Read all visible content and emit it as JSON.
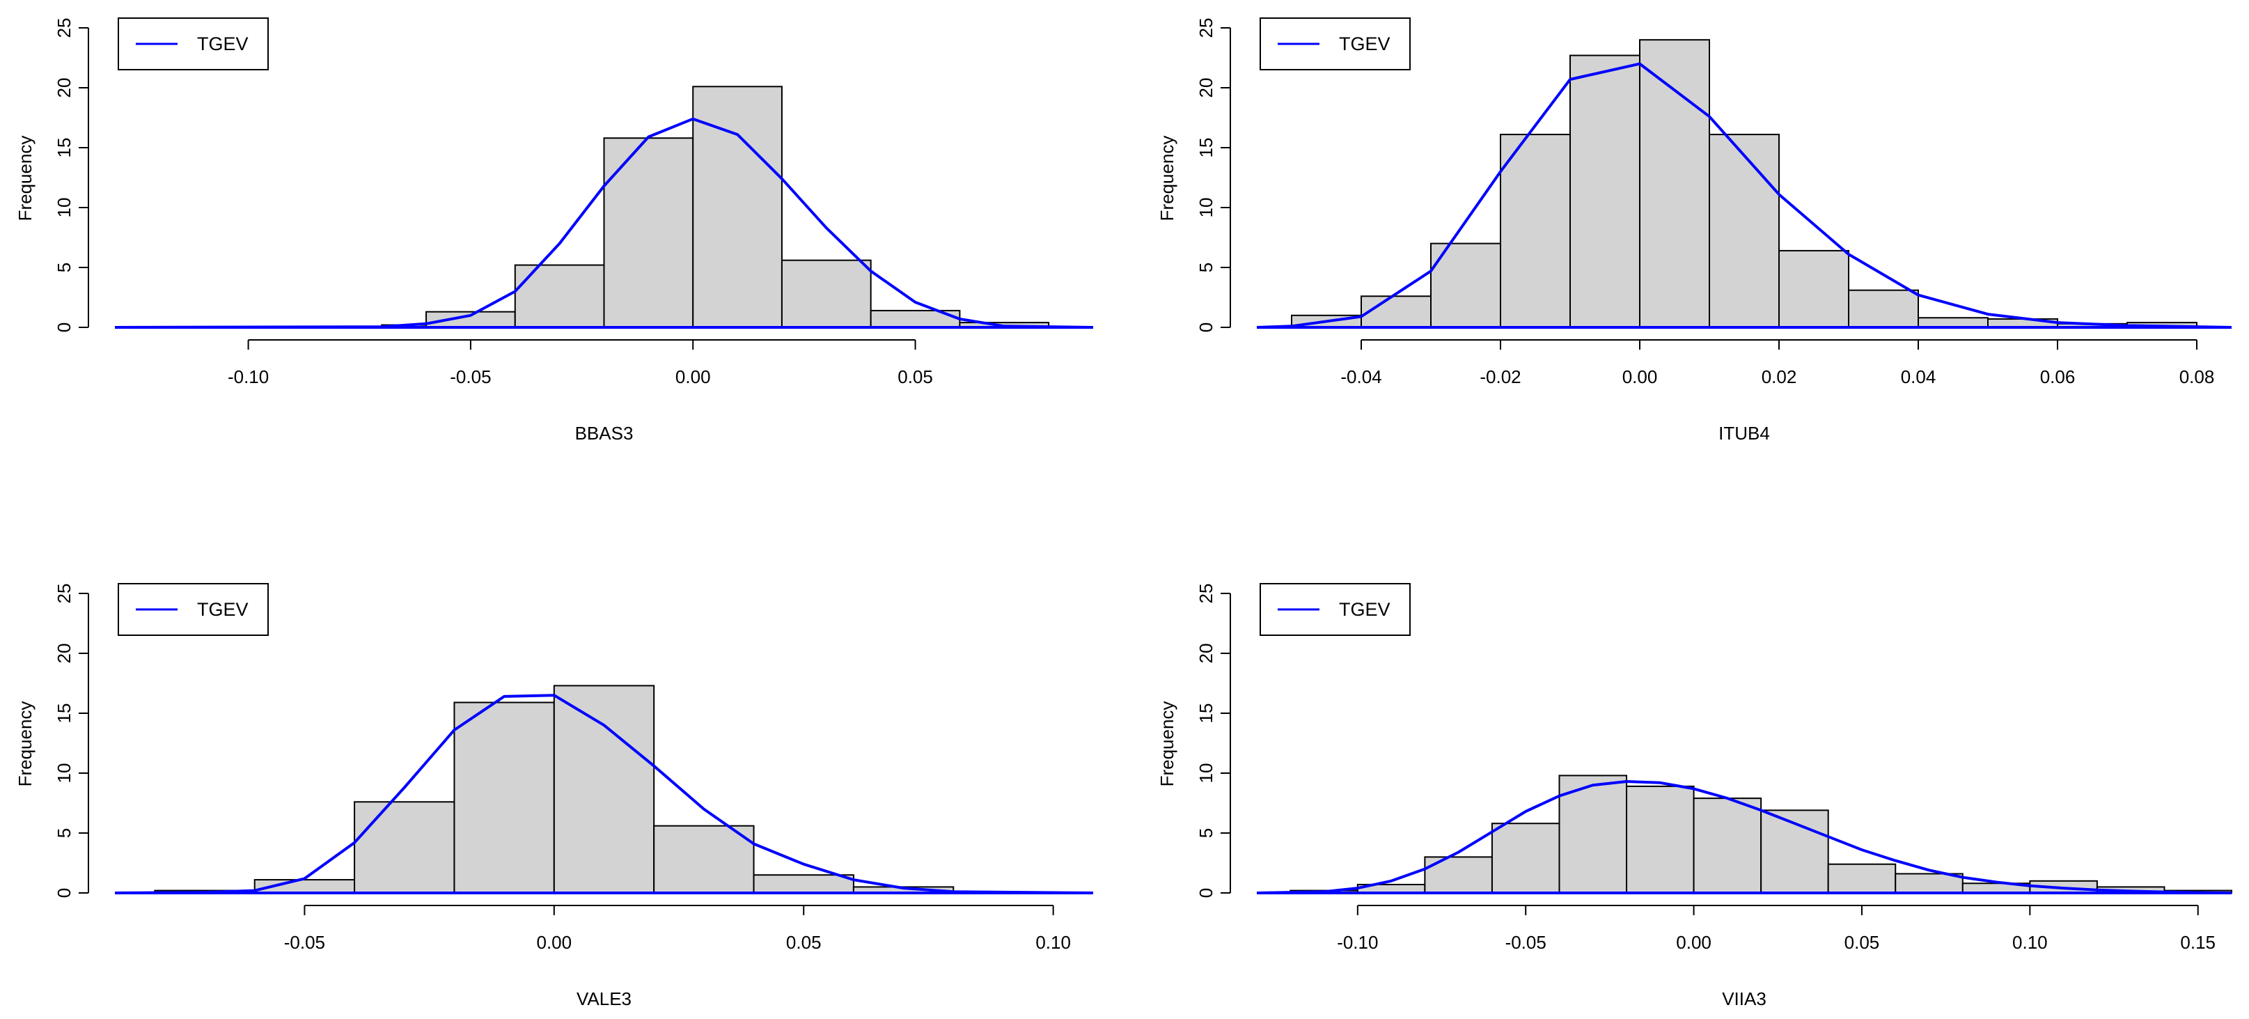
{
  "colors": {
    "bar_fill": "#d3d3d3",
    "bar_stroke": "#000000",
    "line": "#0000ff",
    "axis": "#000000"
  },
  "chart_data": [
    {
      "type": "bar",
      "title": "",
      "xlabel": "BBAS3",
      "ylabel": "Frequency",
      "xlim": [
        -0.13,
        0.09
      ],
      "ylim": [
        0,
        25
      ],
      "xticks": [
        -0.1,
        -0.05,
        0.0,
        0.05
      ],
      "xtick_labels": [
        "-0.10",
        "-0.05",
        "0.00",
        "0.05"
      ],
      "yticks": [
        0,
        5,
        10,
        15,
        20,
        25
      ],
      "ytick_labels": [
        "0",
        "5",
        "10",
        "15",
        "20",
        "25"
      ],
      "legend": {
        "label": "TGEV",
        "position": "top-left"
      },
      "bins": [
        {
          "x0": -0.07,
          "x1": -0.06,
          "count": 0.2
        },
        {
          "x0": -0.06,
          "x1": -0.04,
          "count": 1.3
        },
        {
          "x0": -0.04,
          "x1": -0.02,
          "count": 5.2
        },
        {
          "x0": -0.02,
          "x1": 0.0,
          "count": 15.8
        },
        {
          "x0": 0.0,
          "x1": 0.02,
          "count": 20.1
        },
        {
          "x0": 0.02,
          "x1": 0.04,
          "count": 5.6
        },
        {
          "x0": 0.04,
          "x1": 0.06,
          "count": 1.4
        },
        {
          "x0": 0.06,
          "x1": 0.08,
          "count": 0.4
        }
      ],
      "series": [
        {
          "name": "TGEV",
          "x": [
            -0.13,
            -0.07,
            -0.06,
            -0.05,
            -0.04,
            -0.03,
            -0.02,
            -0.01,
            0.0,
            0.01,
            0.02,
            0.03,
            0.04,
            0.05,
            0.06,
            0.07,
            0.09
          ],
          "y": [
            0,
            0.05,
            0.3,
            1.0,
            3.0,
            7.0,
            11.8,
            15.9,
            17.4,
            16.1,
            12.4,
            8.3,
            4.7,
            2.1,
            0.7,
            0.1,
            0
          ]
        }
      ]
    },
    {
      "type": "bar",
      "title": "",
      "xlabel": "ITUB4",
      "ylabel": "Frequency",
      "xlim": [
        -0.055,
        0.085
      ],
      "ylim": [
        0,
        25
      ],
      "xticks": [
        -0.04,
        -0.02,
        0.0,
        0.02,
        0.04,
        0.06,
        0.08
      ],
      "xtick_labels": [
        "-0.04",
        "-0.02",
        "0.00",
        "0.02",
        "0.04",
        "0.06",
        "0.08"
      ],
      "yticks": [
        0,
        5,
        10,
        15,
        20,
        25
      ],
      "ytick_labels": [
        "0",
        "5",
        "10",
        "15",
        "20",
        "25"
      ],
      "legend": {
        "label": "TGEV",
        "position": "top-left"
      },
      "bins": [
        {
          "x0": -0.05,
          "x1": -0.04,
          "count": 1.0
        },
        {
          "x0": -0.04,
          "x1": -0.03,
          "count": 2.6
        },
        {
          "x0": -0.03,
          "x1": -0.02,
          "count": 7.0
        },
        {
          "x0": -0.02,
          "x1": -0.01,
          "count": 16.1
        },
        {
          "x0": -0.01,
          "x1": 0.0,
          "count": 22.7
        },
        {
          "x0": 0.0,
          "x1": 0.01,
          "count": 24.0
        },
        {
          "x0": 0.01,
          "x1": 0.02,
          "count": 16.1
        },
        {
          "x0": 0.02,
          "x1": 0.03,
          "count": 6.4
        },
        {
          "x0": 0.03,
          "x1": 0.04,
          "count": 3.1
        },
        {
          "x0": 0.04,
          "x1": 0.05,
          "count": 0.8
        },
        {
          "x0": 0.05,
          "x1": 0.06,
          "count": 0.7
        },
        {
          "x0": 0.06,
          "x1": 0.07,
          "count": 0.3
        },
        {
          "x0": 0.07,
          "x1": 0.08,
          "count": 0.4
        }
      ],
      "series": [
        {
          "name": "TGEV",
          "x": [
            -0.055,
            -0.05,
            -0.04,
            -0.03,
            -0.02,
            -0.01,
            0.0,
            0.01,
            0.02,
            0.03,
            0.04,
            0.05,
            0.06,
            0.07,
            0.08,
            0.085
          ],
          "y": [
            0,
            0.1,
            0.9,
            4.7,
            13.0,
            20.7,
            22.0,
            17.6,
            11.1,
            6.1,
            2.7,
            1.1,
            0.4,
            0.15,
            0.05,
            0
          ]
        }
      ]
    },
    {
      "type": "bar",
      "title": "",
      "xlabel": "VALE3",
      "ylabel": "Frequency",
      "xlim": [
        -0.088,
        0.108
      ],
      "ylim": [
        0,
        25
      ],
      "xticks": [
        -0.05,
        0.0,
        0.05,
        0.1
      ],
      "xtick_labels": [
        "-0.05",
        "0.00",
        "0.05",
        "0.10"
      ],
      "yticks": [
        0,
        5,
        10,
        15,
        20,
        25
      ],
      "ytick_labels": [
        "0",
        "5",
        "10",
        "15",
        "20",
        "25"
      ],
      "legend": {
        "label": "TGEV",
        "position": "top-left"
      },
      "bins": [
        {
          "x0": -0.08,
          "x1": -0.06,
          "count": 0.2
        },
        {
          "x0": -0.06,
          "x1": -0.04,
          "count": 1.1
        },
        {
          "x0": -0.04,
          "x1": -0.02,
          "count": 7.6
        },
        {
          "x0": -0.02,
          "x1": 0.0,
          "count": 15.9
        },
        {
          "x0": 0.0,
          "x1": 0.02,
          "count": 17.3
        },
        {
          "x0": 0.02,
          "x1": 0.04,
          "count": 5.6
        },
        {
          "x0": 0.04,
          "x1": 0.06,
          "count": 1.5
        },
        {
          "x0": 0.06,
          "x1": 0.08,
          "count": 0.5
        }
      ],
      "series": [
        {
          "name": "TGEV",
          "x": [
            -0.088,
            -0.07,
            -0.06,
            -0.05,
            -0.04,
            -0.03,
            -0.02,
            -0.01,
            0.0,
            0.01,
            0.02,
            0.03,
            0.04,
            0.05,
            0.06,
            0.07,
            0.08,
            0.108
          ],
          "y": [
            0,
            0.05,
            0.2,
            1.2,
            4.2,
            8.8,
            13.6,
            16.4,
            16.5,
            14.0,
            10.6,
            7.0,
            4.1,
            2.4,
            1.1,
            0.4,
            0.1,
            0
          ]
        }
      ]
    },
    {
      "type": "bar",
      "title": "",
      "xlabel": "VIIA3",
      "ylabel": "Frequency",
      "xlim": [
        -0.13,
        0.16
      ],
      "ylim": [
        0,
        25
      ],
      "xticks": [
        -0.1,
        -0.05,
        0.0,
        0.05,
        0.1,
        0.15
      ],
      "xtick_labels": [
        "-0.10",
        "-0.05",
        "0.00",
        "0.05",
        "0.10",
        "0.15"
      ],
      "yticks": [
        0,
        5,
        10,
        15,
        20,
        25
      ],
      "ytick_labels": [
        "0",
        "5",
        "10",
        "15",
        "20",
        "25"
      ],
      "legend": {
        "label": "TGEV",
        "position": "top-left"
      },
      "bins": [
        {
          "x0": -0.12,
          "x1": -0.1,
          "count": 0.2
        },
        {
          "x0": -0.1,
          "x1": -0.08,
          "count": 0.7
        },
        {
          "x0": -0.08,
          "x1": -0.06,
          "count": 3.0
        },
        {
          "x0": -0.06,
          "x1": -0.04,
          "count": 5.8
        },
        {
          "x0": -0.04,
          "x1": -0.02,
          "count": 9.8
        },
        {
          "x0": -0.02,
          "x1": 0.0,
          "count": 8.9
        },
        {
          "x0": 0.0,
          "x1": 0.02,
          "count": 7.9
        },
        {
          "x0": 0.02,
          "x1": 0.04,
          "count": 6.9
        },
        {
          "x0": 0.04,
          "x1": 0.06,
          "count": 2.4
        },
        {
          "x0": 0.06,
          "x1": 0.08,
          "count": 1.6
        },
        {
          "x0": 0.08,
          "x1": 0.1,
          "count": 0.8
        },
        {
          "x0": 0.1,
          "x1": 0.12,
          "count": 1.0
        },
        {
          "x0": 0.12,
          "x1": 0.14,
          "count": 0.5
        },
        {
          "x0": 0.14,
          "x1": 0.16,
          "count": 0.2
        }
      ],
      "series": [
        {
          "name": "TGEV",
          "x": [
            -0.13,
            -0.11,
            -0.1,
            -0.09,
            -0.08,
            -0.07,
            -0.06,
            -0.05,
            -0.04,
            -0.03,
            -0.02,
            -0.01,
            0.0,
            0.01,
            0.02,
            0.03,
            0.04,
            0.05,
            0.06,
            0.07,
            0.08,
            0.09,
            0.1,
            0.11,
            0.12,
            0.13,
            0.14,
            0.15,
            0.16
          ],
          "y": [
            0,
            0.1,
            0.4,
            1.0,
            2.0,
            3.4,
            5.1,
            6.8,
            8.1,
            9.0,
            9.3,
            9.2,
            8.7,
            7.9,
            6.9,
            5.8,
            4.7,
            3.6,
            2.7,
            1.9,
            1.3,
            0.9,
            0.6,
            0.4,
            0.25,
            0.15,
            0.08,
            0.03,
            0
          ]
        }
      ]
    }
  ]
}
